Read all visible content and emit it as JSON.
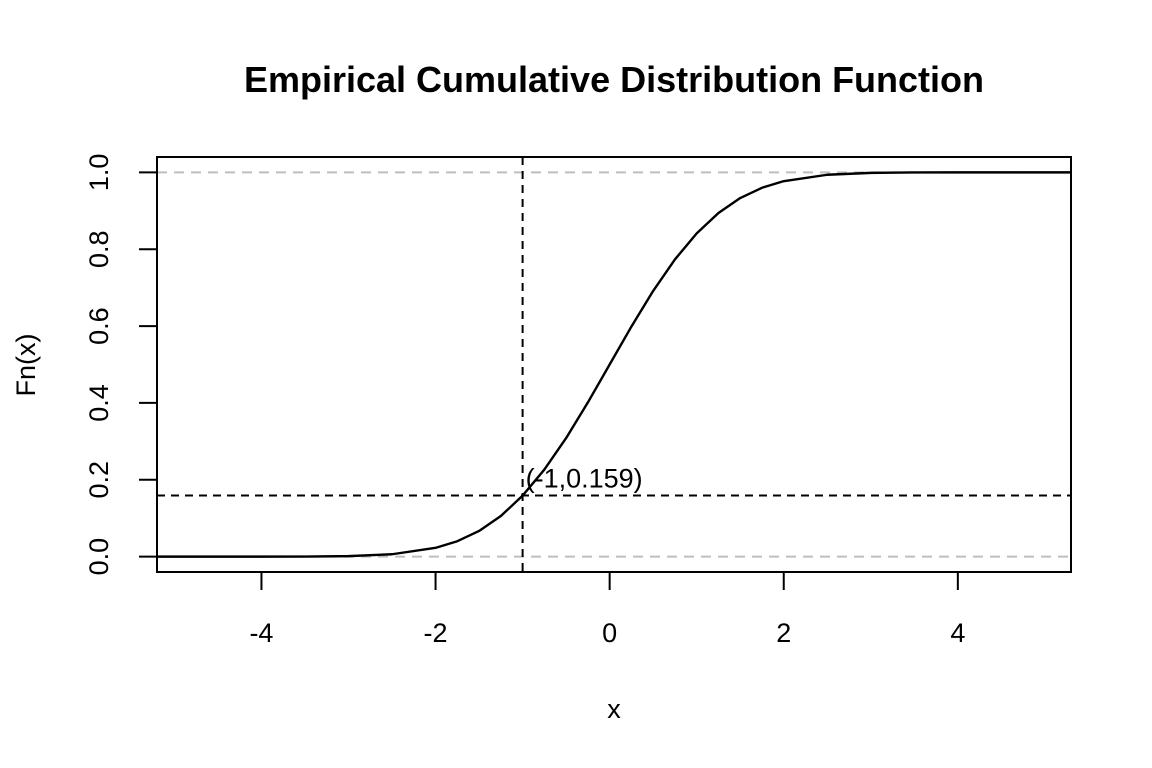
{
  "chart_data": {
    "type": "line",
    "title": "Empirical Cumulative Distribution Function",
    "xlabel": "x",
    "ylabel": "Fn(x)",
    "xlim": [
      -5.2,
      5.3
    ],
    "ylim": [
      -0.04,
      1.04
    ],
    "x_ticks": [
      "-4",
      "-2",
      "0",
      "2",
      "4"
    ],
    "y_ticks": [
      "0.0",
      "0.2",
      "0.4",
      "0.6",
      "0.8",
      "1.0"
    ],
    "series": [
      {
        "x": [
          -5.2,
          -4.5,
          -4.0,
          -3.5,
          -3.0,
          -2.5,
          -2.0,
          -1.75,
          -1.5,
          -1.25,
          -1.0,
          -0.75,
          -0.5,
          -0.25,
          0.0,
          0.25,
          0.5,
          0.75,
          1.0,
          1.25,
          1.5,
          1.75,
          2.0,
          2.5,
          3.0,
          3.5,
          4.0,
          4.5,
          5.3
        ],
        "y": [
          0.0,
          0.0,
          0.0,
          0.0002,
          0.0013,
          0.0062,
          0.0228,
          0.0401,
          0.0668,
          0.1056,
          0.1587,
          0.2266,
          0.3085,
          0.4013,
          0.5,
          0.5987,
          0.6915,
          0.7734,
          0.8413,
          0.8944,
          0.9332,
          0.9599,
          0.9772,
          0.9938,
          0.9987,
          0.9998,
          1.0,
          1.0,
          1.0
        ]
      }
    ],
    "reference_lines": {
      "horizontal_gray": [
        0,
        1
      ],
      "vertical_dashed_x": -1,
      "horizontal_dashed_y": 0.159
    },
    "annotation": {
      "text": "(-1,0.159)",
      "x": -1,
      "y": 0.159
    },
    "grid": false,
    "legend": "none"
  }
}
